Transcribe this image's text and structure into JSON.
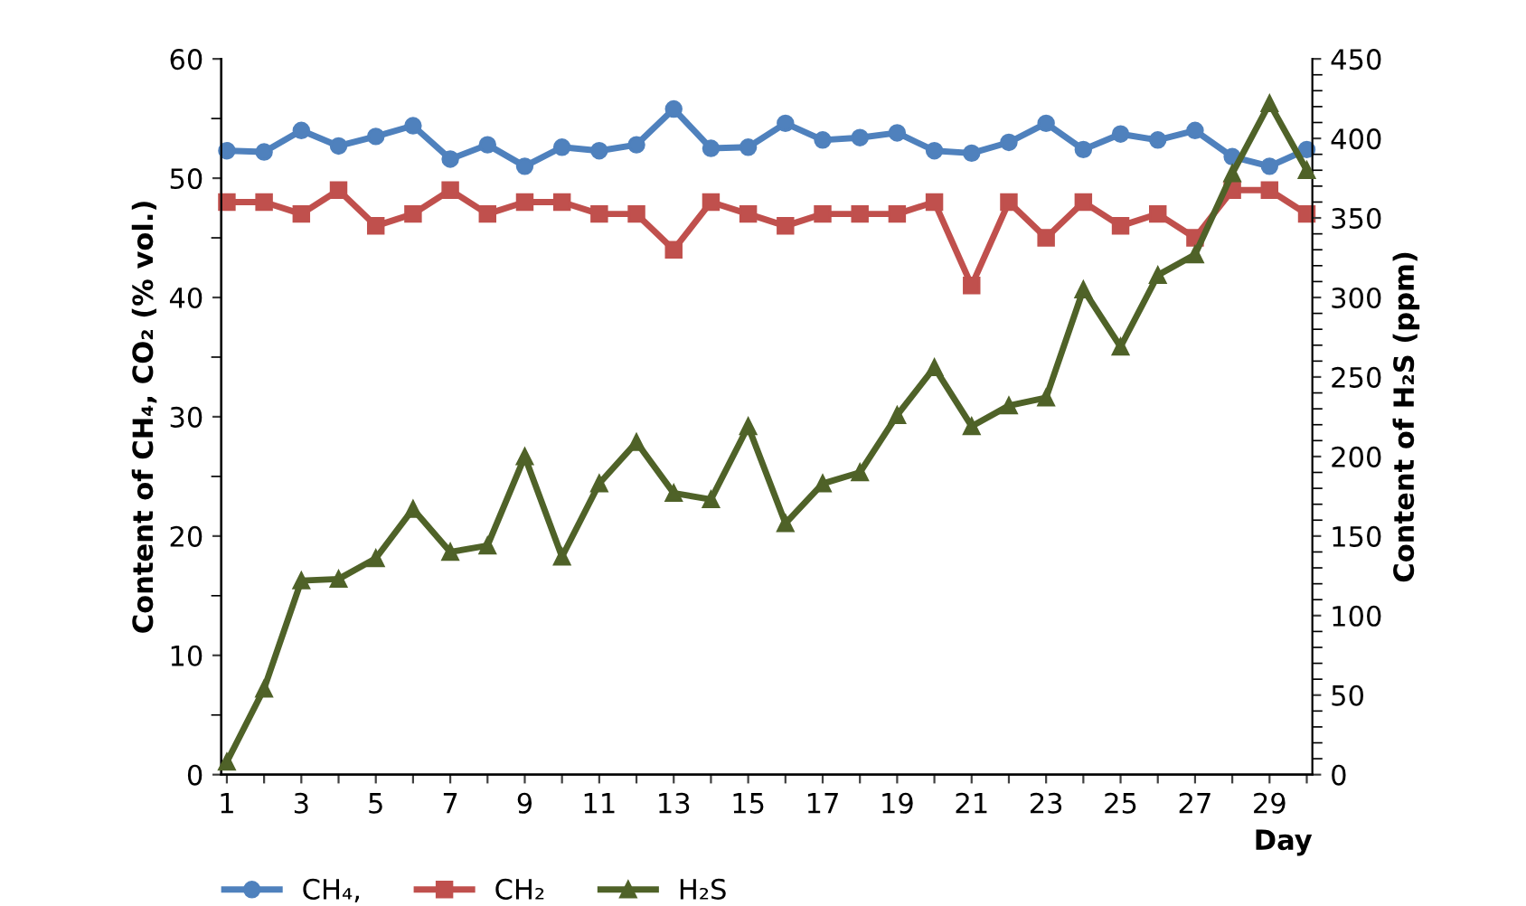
{
  "chart_data": {
    "type": "line",
    "xlabel": "Day",
    "ylabel": "Content of CH₄, CO₂ (% vol.)",
    "y2label": "Content of H₂S (ppm)",
    "categories": [
      "1",
      null,
      "3",
      null,
      "5",
      null,
      "7",
      null,
      "9",
      null,
      "11",
      null,
      "13",
      null,
      "15",
      null,
      "17",
      null,
      "19",
      null,
      "21",
      null,
      "23",
      null,
      "25",
      null,
      "27",
      null,
      "29",
      null
    ],
    "series": [
      {
        "name": "CH₄,",
        "color": "#4f81bd",
        "marker": "circle",
        "values": [
          52.3,
          52.2,
          54,
          52.7,
          53.5,
          54.4,
          51.6,
          52.8,
          51,
          52.6,
          52.3,
          52.8,
          55.8,
          52.5,
          52.6,
          54.6,
          53.2,
          53.4,
          53.8,
          52.3,
          52.1,
          53,
          54.6,
          52.4,
          53.7,
          53.2,
          54,
          51.8,
          51,
          52.4
        ]
      },
      {
        "name": "CH₂",
        "color": "#c0504d",
        "marker": "square",
        "values": [
          48,
          48,
          47,
          49,
          46,
          47,
          49,
          47,
          48,
          48,
          47,
          47,
          44,
          48,
          47,
          46,
          47,
          47,
          47,
          48,
          41,
          48,
          45,
          48,
          46,
          47,
          45,
          49,
          49,
          47
        ]
      },
      {
        "name": "H₂S",
        "color": "#4f6228",
        "marker": "triangle",
        "axis": "y2",
        "values": [
          8,
          54,
          122,
          123,
          136,
          167,
          140,
          144,
          200,
          137,
          183,
          209,
          177,
          173,
          219,
          158,
          183,
          190,
          226,
          256,
          219,
          232,
          237,
          305,
          269,
          314,
          327,
          378,
          422,
          380
        ]
      }
    ],
    "ylim": [
      0,
      60
    ],
    "yticks": [
      0,
      10,
      20,
      30,
      40,
      50,
      60
    ],
    "y2lim": [
      0,
      450
    ],
    "y2ticks": [
      0,
      50,
      100,
      150,
      200,
      250,
      300,
      350,
      400,
      450
    ],
    "grid": false,
    "legend": "bottom left",
    "line_style": "solid"
  }
}
